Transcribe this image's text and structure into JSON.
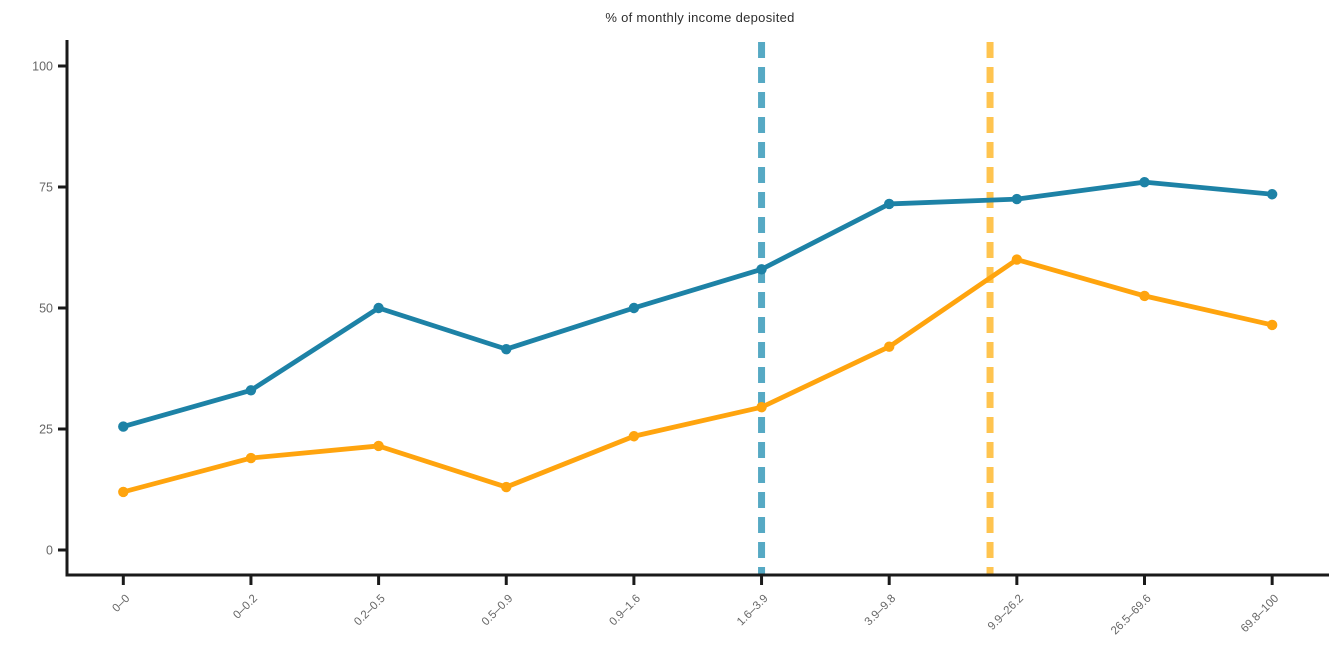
{
  "chart_data": {
    "type": "line",
    "title": "% of monthly income deposited",
    "categories": [
      "0–0",
      "0–0.2",
      "0.2–0.5",
      "0.5–0.9",
      "0.9–1.6",
      "1.6–3.9",
      "3.9–9.8",
      "9.9–26.2",
      "26.5–69.6",
      "69.8–100"
    ],
    "series": [
      {
        "name": "teal-line",
        "color": "#1D82A6",
        "marker": "circle",
        "values": [
          25.5,
          33,
          50,
          41.5,
          50,
          58,
          71.5,
          72.5,
          76,
          73.5
        ]
      },
      {
        "name": "orange-line",
        "color": "#FFA40E",
        "marker": "circle",
        "values": [
          12,
          19,
          21.5,
          13,
          23.5,
          29.5,
          42,
          60,
          52.5,
          46.5
        ]
      }
    ],
    "vlines": [
      {
        "name": "teal-dashed-vline",
        "color": "#56A9C4",
        "style": "dashed",
        "x_index": 5.0,
        "at_category": "1.6–3.9"
      },
      {
        "name": "orange-dashed-vline",
        "color": "#FFC44F",
        "style": "dashed",
        "x_index": 6.79,
        "between_categories": [
          "3.9–9.8",
          "9.9–26.2"
        ]
      }
    ],
    "yticks": [
      0,
      25,
      50,
      75,
      100
    ],
    "ylim": [
      0,
      105
    ],
    "xlabel": "",
    "ylabel": "",
    "grid": false,
    "legend": "none",
    "axis_color": "#1a1a1a",
    "tick_label_color": "#666666",
    "title_color": "#2e2e2e"
  }
}
